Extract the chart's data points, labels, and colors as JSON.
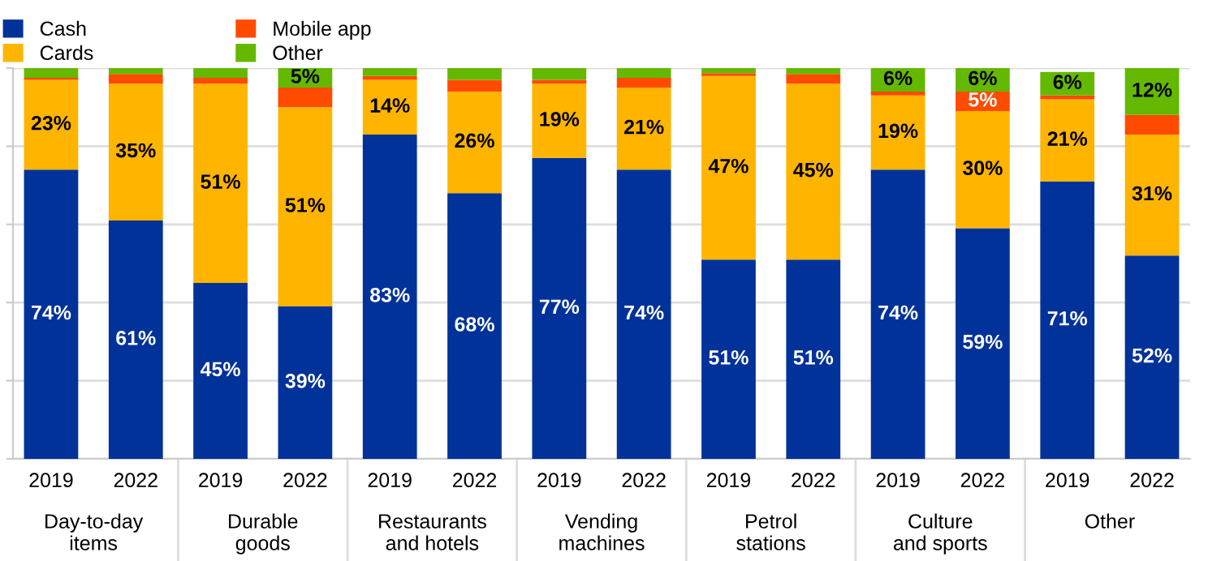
{
  "chart_data": {
    "type": "bar",
    "stacked": true,
    "categories": [
      "2019",
      "2022",
      "2019",
      "2022",
      "2019",
      "2022",
      "2019",
      "2022",
      "2019",
      "2022",
      "2019",
      "2022",
      "2019",
      "2022"
    ],
    "annotations": [
      "Day-to-day\nitems",
      "Durable\ngoods",
      "Restaurants\nand hotels",
      "Vending\nmachines",
      "Petrol\nstations",
      "Culture\nand sports",
      "Other"
    ],
    "series": [
      {
        "name": "Cash",
        "color": "#003299",
        "values": [
          74,
          61,
          45,
          39,
          83,
          68,
          77,
          74,
          51,
          51,
          74,
          59,
          71,
          52
        ],
        "value_labels": [
          "74%",
          "61%",
          "45%",
          "39%",
          "83%",
          "68%",
          "77%",
          "74%",
          "51%",
          "51%",
          "74%",
          "59%",
          "71%",
          "52%"
        ]
      },
      {
        "name": "Cards",
        "color": "#ffb400",
        "values": [
          23,
          35,
          51,
          51,
          14,
          26,
          19,
          21,
          47,
          45,
          19,
          30,
          21,
          31
        ],
        "value_labels": [
          "23%",
          "35%",
          "51%",
          "51%",
          "14%",
          "26%",
          "19%",
          "21%",
          "47%",
          "45%",
          "19%",
          "30%",
          "21%",
          "31%"
        ]
      },
      {
        "name": "Mobile app",
        "color": "#ff4b00",
        "values": [
          0.5,
          2.5,
          1.5,
          5,
          1,
          3,
          1,
          2.5,
          0.7,
          2.5,
          1,
          5,
          1,
          5
        ],
        "value_labels": [
          null,
          null,
          null,
          null,
          null,
          null,
          null,
          null,
          null,
          null,
          null,
          "5%",
          null,
          null
        ]
      },
      {
        "name": "Other",
        "color": "#65b800",
        "values": [
          2.5,
          1.5,
          2.5,
          5,
          2,
          3,
          3,
          2.5,
          1.3,
          1.5,
          6,
          6,
          6,
          12
        ],
        "value_labels": [
          null,
          null,
          null,
          "5%",
          null,
          null,
          null,
          null,
          null,
          null,
          "6%",
          "6%",
          "6%",
          "12%"
        ]
      }
    ],
    "ylim": [
      0,
      100
    ],
    "yticks": [
      {
        "value": 0,
        "label": null
      },
      {
        "value": 20,
        "label": null
      },
      {
        "value": 40,
        "label": null
      },
      {
        "value": 60,
        "label": null
      },
      {
        "value": 80,
        "label": null
      },
      {
        "value": 100,
        "label": null
      }
    ],
    "tick_labels": "x",
    "grid": "y",
    "legend": "top left"
  }
}
